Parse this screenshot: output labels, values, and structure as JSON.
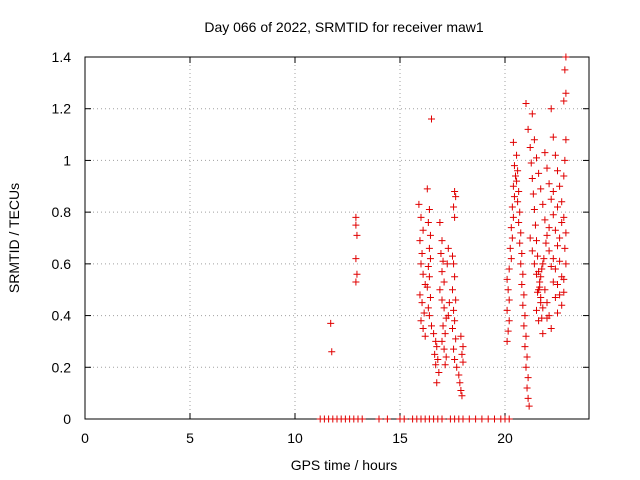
{
  "chart_data": {
    "type": "scatter",
    "title": "Day 066 of 2022, SRMTID for receiver maw1",
    "xlabel": "GPS time / hours",
    "ylabel": "SRMTID / TECUs",
    "xlim": [
      0,
      24
    ],
    "ylim": [
      0,
      1.4
    ],
    "xticks": [
      0,
      5,
      10,
      15,
      20
    ],
    "xtick_labels": [
      "0",
      "5",
      "10",
      "15",
      "20"
    ],
    "yticks": [
      0,
      0.2,
      0.4,
      0.6,
      0.8,
      1.0,
      1.2,
      1.4
    ],
    "ytick_labels": [
      "0",
      "0.2",
      "0.4",
      "0.6",
      "0.8",
      "1",
      "1.2",
      "1.4"
    ],
    "grid": true,
    "marker": "+",
    "color": "#e00000",
    "series": [
      {
        "points": [
          [
            11.7,
            0.37
          ],
          [
            11.75,
            0.26
          ],
          [
            12.9,
            0.78
          ],
          [
            12.9,
            0.75
          ],
          [
            12.95,
            0.71
          ],
          [
            12.9,
            0.62
          ],
          [
            12.95,
            0.56
          ],
          [
            12.9,
            0.53
          ],
          [
            15.9,
            0.83
          ],
          [
            16.0,
            0.78
          ],
          [
            16.1,
            0.73
          ],
          [
            15.95,
            0.69
          ],
          [
            16.05,
            0.64
          ],
          [
            16.0,
            0.6
          ],
          [
            16.1,
            0.56
          ],
          [
            16.2,
            0.52
          ],
          [
            15.95,
            0.48
          ],
          [
            16.05,
            0.45
          ],
          [
            16.15,
            0.41
          ],
          [
            16.0,
            0.38
          ],
          [
            16.1,
            0.35
          ],
          [
            16.2,
            0.32
          ],
          [
            16.3,
            0.89
          ],
          [
            16.4,
            0.81
          ],
          [
            16.35,
            0.76
          ],
          [
            16.45,
            0.71
          ],
          [
            16.5,
            1.16
          ],
          [
            16.4,
            0.66
          ],
          [
            16.45,
            0.62
          ],
          [
            16.35,
            0.59
          ],
          [
            16.4,
            0.55
          ],
          [
            16.3,
            0.51
          ],
          [
            16.45,
            0.47
          ],
          [
            16.35,
            0.43
          ],
          [
            16.4,
            0.4
          ],
          [
            16.5,
            0.36
          ],
          [
            16.6,
            0.33
          ],
          [
            16.7,
            0.3
          ],
          [
            16.75,
            0.28
          ],
          [
            16.65,
            0.25
          ],
          [
            16.8,
            0.23
          ],
          [
            16.7,
            0.21
          ],
          [
            16.85,
            0.18
          ],
          [
            16.75,
            0.14
          ],
          [
            16.9,
            0.76
          ],
          [
            17.0,
            0.69
          ],
          [
            16.95,
            0.64
          ],
          [
            17.05,
            0.61
          ],
          [
            17.0,
            0.57
          ],
          [
            17.1,
            0.53
          ],
          [
            16.9,
            0.5
          ],
          [
            17.0,
            0.46
          ],
          [
            17.1,
            0.43
          ],
          [
            17.2,
            0.39
          ],
          [
            17.05,
            0.36
          ],
          [
            17.15,
            0.33
          ],
          [
            17.0,
            0.3
          ],
          [
            17.1,
            0.27
          ],
          [
            17.2,
            0.24
          ],
          [
            17.15,
            0.21
          ],
          [
            17.3,
            0.66
          ],
          [
            17.25,
            0.6
          ],
          [
            17.35,
            0.45
          ],
          [
            17.3,
            0.4
          ],
          [
            17.6,
            0.88
          ],
          [
            17.65,
            0.86
          ],
          [
            17.55,
            0.82
          ],
          [
            17.6,
            0.78
          ],
          [
            17.5,
            0.63
          ],
          [
            17.55,
            0.6
          ],
          [
            17.6,
            0.55
          ],
          [
            17.5,
            0.5
          ],
          [
            17.65,
            0.46
          ],
          [
            17.55,
            0.42
          ],
          [
            17.6,
            0.38
          ],
          [
            17.5,
            0.35
          ],
          [
            17.65,
            0.31
          ],
          [
            17.55,
            0.27
          ],
          [
            17.6,
            0.23
          ],
          [
            17.7,
            0.2
          ],
          [
            17.8,
            0.17
          ],
          [
            17.85,
            0.14
          ],
          [
            17.9,
            0.11
          ],
          [
            17.95,
            0.09
          ],
          [
            17.9,
            0.32
          ],
          [
            18.0,
            0.28
          ],
          [
            17.95,
            0.25
          ],
          [
            18.0,
            0.22
          ],
          [
            20.1,
            0.3
          ],
          [
            20.15,
            0.34
          ],
          [
            20.2,
            0.38
          ],
          [
            20.1,
            0.42
          ],
          [
            20.2,
            0.46
          ],
          [
            20.15,
            0.5
          ],
          [
            20.1,
            0.54
          ],
          [
            20.2,
            0.58
          ],
          [
            20.3,
            0.62
          ],
          [
            20.25,
            0.66
          ],
          [
            20.35,
            0.7
          ],
          [
            20.3,
            0.74
          ],
          [
            20.4,
            0.78
          ],
          [
            20.35,
            0.82
          ],
          [
            20.45,
            0.86
          ],
          [
            20.4,
            0.9
          ],
          [
            20.5,
            0.94
          ],
          [
            20.45,
            0.98
          ],
          [
            20.4,
            1.07
          ],
          [
            20.55,
            1.02
          ],
          [
            20.6,
            0.96
          ],
          [
            20.55,
            0.92
          ],
          [
            20.65,
            0.88
          ],
          [
            20.6,
            0.84
          ],
          [
            20.7,
            0.8
          ],
          [
            20.65,
            0.76
          ],
          [
            20.75,
            0.72
          ],
          [
            20.7,
            0.68
          ],
          [
            20.8,
            0.64
          ],
          [
            20.75,
            0.6
          ],
          [
            20.85,
            0.56
          ],
          [
            20.8,
            0.52
          ],
          [
            20.9,
            0.48
          ],
          [
            20.85,
            0.44
          ],
          [
            20.95,
            0.4
          ],
          [
            20.9,
            0.36
          ],
          [
            21.0,
            0.32
          ],
          [
            20.95,
            0.28
          ],
          [
            21.05,
            0.24
          ],
          [
            21.0,
            0.2
          ],
          [
            21.1,
            0.16
          ],
          [
            21.05,
            0.12
          ],
          [
            21.1,
            0.08
          ],
          [
            21.15,
            0.05
          ],
          [
            21.0,
            1.22
          ],
          [
            21.1,
            1.12
          ],
          [
            21.2,
            1.05
          ],
          [
            21.25,
            0.99
          ],
          [
            21.3,
            0.93
          ],
          [
            21.35,
            0.87
          ],
          [
            21.4,
            0.81
          ],
          [
            21.45,
            0.75
          ],
          [
            21.5,
            0.69
          ],
          [
            21.55,
            0.63
          ],
          [
            21.6,
            0.57
          ],
          [
            21.65,
            0.51
          ],
          [
            21.7,
            0.45
          ],
          [
            21.75,
            0.39
          ],
          [
            21.8,
            0.33
          ],
          [
            21.3,
            1.18
          ],
          [
            21.4,
            1.08
          ],
          [
            21.5,
            1.01
          ],
          [
            21.6,
            0.95
          ],
          [
            21.7,
            0.89
          ],
          [
            21.8,
            0.83
          ],
          [
            21.9,
            0.77
          ],
          [
            22.0,
            0.71
          ],
          [
            22.1,
            0.65
          ],
          [
            22.2,
            0.59
          ],
          [
            22.3,
            0.53
          ],
          [
            22.4,
            0.47
          ],
          [
            22.5,
            0.41
          ],
          [
            21.9,
            1.03
          ],
          [
            22.0,
            0.97
          ],
          [
            22.1,
            0.91
          ],
          [
            22.2,
            0.85
          ],
          [
            22.3,
            0.79
          ],
          [
            22.4,
            0.73
          ],
          [
            22.5,
            0.67
          ],
          [
            22.6,
            0.61
          ],
          [
            22.7,
            0.55
          ],
          [
            22.8,
            0.49
          ],
          [
            22.2,
            1.2
          ],
          [
            22.3,
            1.09
          ],
          [
            22.4,
            1.02
          ],
          [
            22.5,
            0.96
          ],
          [
            22.6,
            0.9
          ],
          [
            22.7,
            0.84
          ],
          [
            22.8,
            0.78
          ],
          [
            22.9,
            0.72
          ],
          [
            22.85,
            0.66
          ],
          [
            22.9,
            0.6
          ],
          [
            22.8,
            0.54
          ],
          [
            22.9,
            1.4
          ],
          [
            22.85,
            1.35
          ],
          [
            22.9,
            1.26
          ],
          [
            22.8,
            1.23
          ],
          [
            22.9,
            1.08
          ],
          [
            22.85,
            1.0
          ],
          [
            22.8,
            0.94
          ],
          [
            21.5,
            0.42
          ],
          [
            21.6,
            0.38
          ],
          [
            21.7,
            0.55
          ],
          [
            21.8,
            0.6
          ],
          [
            21.9,
            0.5
          ],
          [
            22.0,
            0.45
          ],
          [
            22.1,
            0.4
          ],
          [
            22.2,
            0.35
          ],
          [
            22.3,
            0.62
          ],
          [
            22.4,
            0.58
          ],
          [
            22.5,
            0.52
          ],
          [
            22.6,
            0.48
          ],
          [
            22.7,
            0.44
          ],
          [
            21.2,
            0.7
          ],
          [
            21.3,
            0.65
          ],
          [
            21.4,
            0.6
          ],
          [
            21.5,
            0.56
          ],
          [
            21.6,
            0.5
          ],
          [
            21.7,
            0.47
          ],
          [
            21.8,
            0.43
          ],
          [
            22.0,
            0.39
          ],
          [
            22.6,
            0.7
          ],
          [
            22.7,
            0.76
          ],
          [
            22.5,
            0.82
          ],
          [
            22.3,
            0.88
          ],
          [
            22.1,
            0.74
          ],
          [
            21.95,
            0.68
          ],
          [
            21.85,
            0.62
          ],
          [
            21.75,
            0.58
          ],
          [
            21.65,
            0.53
          ],
          [
            21.55,
            0.49
          ],
          [
            11.2,
            0.0
          ],
          [
            11.4,
            0.0
          ],
          [
            11.6,
            0.0
          ],
          [
            11.8,
            0.0
          ],
          [
            12.0,
            0.0
          ],
          [
            12.2,
            0.0
          ],
          [
            12.4,
            0.0
          ],
          [
            12.6,
            0.0
          ],
          [
            12.8,
            0.0
          ],
          [
            13.0,
            0.0
          ],
          [
            13.2,
            0.0
          ],
          [
            14.0,
            0.0
          ],
          [
            14.4,
            0.0
          ],
          [
            15.0,
            0.0
          ],
          [
            15.2,
            0.0
          ],
          [
            15.6,
            0.0
          ],
          [
            15.8,
            0.0
          ],
          [
            16.0,
            0.0
          ],
          [
            16.2,
            0.0
          ],
          [
            16.4,
            0.0
          ],
          [
            16.6,
            0.0
          ],
          [
            16.8,
            0.0
          ],
          [
            17.0,
            0.0
          ],
          [
            17.4,
            0.0
          ],
          [
            17.6,
            0.0
          ],
          [
            17.8,
            0.0
          ],
          [
            18.0,
            0.0
          ],
          [
            18.3,
            0.0
          ],
          [
            18.6,
            0.0
          ],
          [
            18.9,
            0.0
          ],
          [
            19.2,
            0.0
          ],
          [
            19.5,
            0.0
          ],
          [
            19.8,
            0.0
          ],
          [
            20.0,
            0.0
          ],
          [
            20.2,
            0.0
          ]
        ]
      }
    ]
  }
}
